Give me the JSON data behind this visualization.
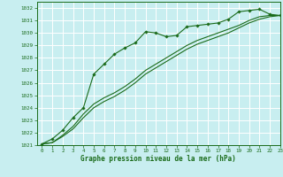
{
  "title": "Graphe pression niveau de la mer (hPa)",
  "bg_color": "#c8eef0",
  "grid_color": "#aad4d8",
  "line_color": "#1a6b1a",
  "marker_color": "#1a6b1a",
  "xlim": [
    -0.5,
    23
  ],
  "ylim": [
    1021,
    1032.5
  ],
  "yticks": [
    1021,
    1022,
    1023,
    1024,
    1025,
    1026,
    1027,
    1028,
    1029,
    1030,
    1031,
    1032
  ],
  "xticks": [
    0,
    1,
    2,
    3,
    4,
    5,
    6,
    7,
    8,
    9,
    10,
    11,
    12,
    13,
    14,
    15,
    16,
    17,
    18,
    19,
    20,
    21,
    22,
    23
  ],
  "series1_x": [
    0,
    1,
    2,
    3,
    4,
    5,
    6,
    7,
    8,
    9,
    10,
    11,
    12,
    13,
    14,
    15,
    16,
    17,
    18,
    19,
    20,
    21,
    22,
    23
  ],
  "series1_y": [
    1021.1,
    1021.5,
    1022.2,
    1023.2,
    1024.0,
    1026.7,
    1027.5,
    1028.3,
    1028.8,
    1029.2,
    1030.1,
    1030.0,
    1029.7,
    1029.8,
    1030.5,
    1030.6,
    1030.7,
    1030.8,
    1031.1,
    1031.7,
    1031.8,
    1031.9,
    1031.5,
    1031.4
  ],
  "series2_x": [
    0,
    1,
    2,
    3,
    4,
    5,
    6,
    7,
    8,
    9,
    10,
    11,
    12,
    13,
    14,
    15,
    16,
    17,
    18,
    19,
    20,
    21,
    22,
    23
  ],
  "series2_y": [
    1021.1,
    1021.2,
    1021.8,
    1022.5,
    1023.5,
    1024.3,
    1024.8,
    1025.2,
    1025.7,
    1026.3,
    1027.0,
    1027.5,
    1028.0,
    1028.5,
    1029.0,
    1029.4,
    1029.7,
    1030.0,
    1030.3,
    1030.6,
    1031.0,
    1031.3,
    1031.4,
    1031.4
  ],
  "series3_x": [
    0,
    1,
    2,
    3,
    4,
    5,
    6,
    7,
    8,
    9,
    10,
    11,
    12,
    13,
    14,
    15,
    16,
    17,
    18,
    19,
    20,
    21,
    22,
    23
  ],
  "series3_y": [
    1021.1,
    1021.2,
    1021.7,
    1022.3,
    1023.2,
    1024.0,
    1024.5,
    1024.9,
    1025.4,
    1026.0,
    1026.7,
    1027.2,
    1027.7,
    1028.2,
    1028.7,
    1029.1,
    1029.4,
    1029.7,
    1030.0,
    1030.4,
    1030.8,
    1031.1,
    1031.3,
    1031.4
  ]
}
